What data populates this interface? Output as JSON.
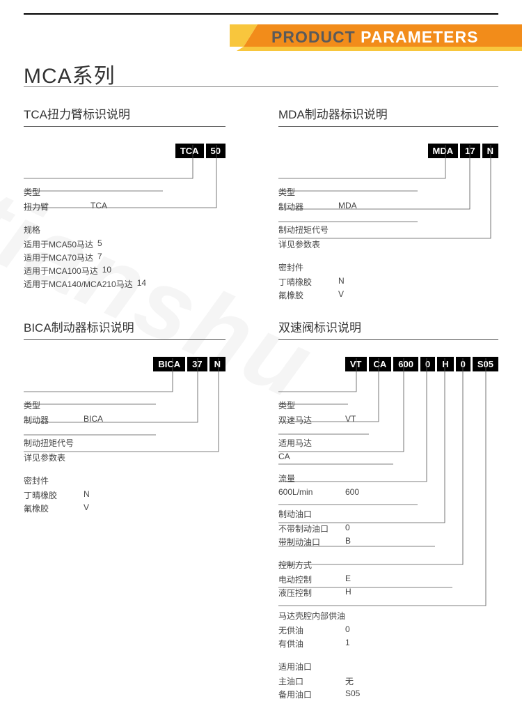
{
  "colors": {
    "orange": "#f28c1a",
    "yellow": "#f8c63d",
    "black": "#000000",
    "text": "#333333",
    "rule": "#888888"
  },
  "banner": {
    "text_gray": "PRODUCT ",
    "text_white": "PARAMETERS"
  },
  "series_title": "MCA系列",
  "q1": {
    "title": "TCA扭力臂标识说明",
    "codes": [
      "TCA",
      "50"
    ],
    "groups": [
      {
        "label": "类型",
        "rows": [
          [
            "扭力臂",
            "TCA"
          ]
        ]
      },
      {
        "label": "规格",
        "rows": [
          [
            "适用于MCA50马达",
            "5"
          ],
          [
            "适用于MCA70马达",
            "7"
          ],
          [
            "适用于MCA100马达",
            "10"
          ],
          [
            "适用于MCA140/MCA210马达",
            "14"
          ]
        ]
      }
    ]
  },
  "q2": {
    "title": "MDA制动器标识说明",
    "codes": [
      "MDA",
      "17",
      "N"
    ],
    "groups": [
      {
        "label": "类型",
        "rows": [
          [
            "制动器",
            "MDA"
          ]
        ]
      },
      {
        "label": "制动扭矩代号",
        "rows": [
          [
            "详见参数表",
            ""
          ]
        ]
      },
      {
        "label": "密封件",
        "rows": [
          [
            "丁晴橡胶",
            "N"
          ],
          [
            "氟橡胶",
            "V"
          ]
        ]
      }
    ]
  },
  "q3": {
    "title": "BICA制动器标识说明",
    "codes": [
      "BICA",
      "37",
      "N"
    ],
    "groups": [
      {
        "label": "类型",
        "rows": [
          [
            "制动器",
            "BICA"
          ]
        ]
      },
      {
        "label": "制动扭矩代号",
        "rows": [
          [
            "详见参数表",
            ""
          ]
        ]
      },
      {
        "label": "密封件",
        "rows": [
          [
            "丁晴橡胶",
            "N"
          ],
          [
            "氟橡胶",
            "V"
          ]
        ]
      }
    ]
  },
  "q4": {
    "title": "双速阀标识说明",
    "codes": [
      "VT",
      "CA",
      "600",
      "0",
      "H",
      "0",
      "S05"
    ],
    "groups": [
      {
        "label": "类型",
        "rows": [
          [
            "双速马达",
            "VT"
          ]
        ]
      },
      {
        "label": "适用马达",
        "rows": [
          [
            "CA",
            ""
          ]
        ]
      },
      {
        "label": "流量",
        "rows": [
          [
            "600L/min",
            "600"
          ]
        ]
      },
      {
        "label": "制动油口",
        "rows": [
          [
            "不带制动油口",
            "0"
          ],
          [
            "带制动油口",
            "B"
          ]
        ]
      },
      {
        "label": "控制方式",
        "rows": [
          [
            "电动控制",
            "E"
          ],
          [
            "液压控制",
            "H"
          ]
        ]
      },
      {
        "label": "马达壳腔内部供油",
        "rows": [
          [
            "无供油",
            "0"
          ],
          [
            "有供油",
            "1"
          ]
        ]
      },
      {
        "label": "适用油口",
        "rows": [
          [
            "主油口",
            "无"
          ],
          [
            "备用油口",
            "S05"
          ]
        ]
      }
    ]
  }
}
